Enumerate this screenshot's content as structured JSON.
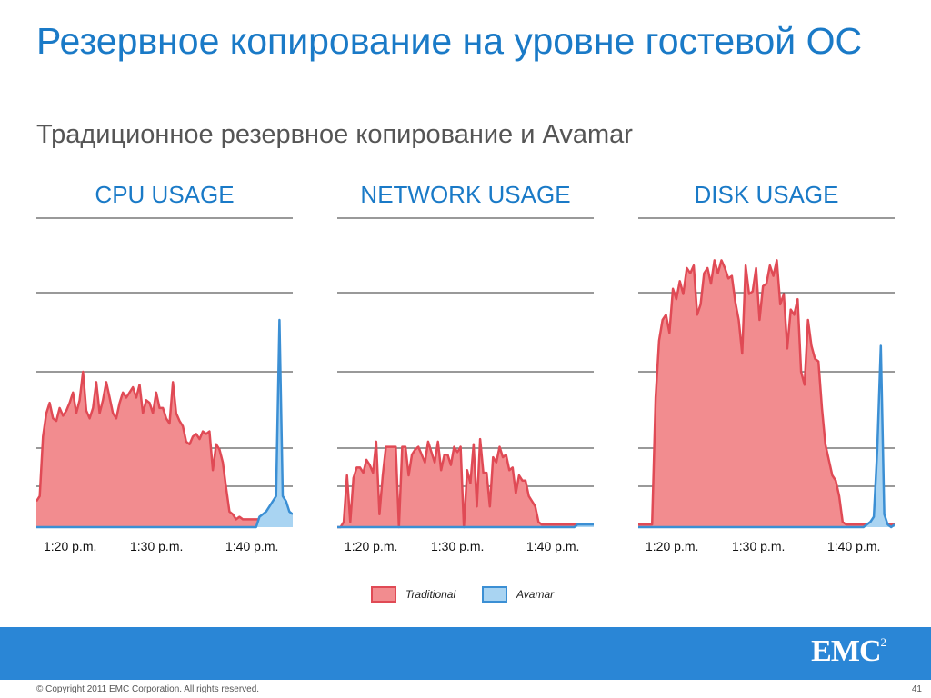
{
  "slide": {
    "title": "Резервное копирование на уровне гостевой ОС",
    "subtitle": "Традиционное резервное копирование и Avamar",
    "copyright": "© Copyright 2011 EMC Corporation. All rights reserved.",
    "page_number": "41",
    "logo_text": "EMC",
    "logo_sup": "2"
  },
  "colors": {
    "traditional_fill": "#f28c8f",
    "traditional_line": "#e04a55",
    "avamar_fill": "#a9d4f2",
    "avamar_line": "#3b8fd4",
    "accent": "#1a7ac7",
    "bar": "#2a86d6"
  },
  "legend": [
    {
      "name": "Traditional",
      "fill": "#f28c8f",
      "stroke": "#e04a55"
    },
    {
      "name": "Avamar",
      "fill": "#a9d4f2",
      "stroke": "#3b8fd4"
    }
  ],
  "chart_data": [
    {
      "type": "area",
      "title": "CPU USAGE",
      "x_ticks": [
        "1:20 p.m.",
        "1:30 p.m.",
        "1:40 p.m."
      ],
      "ylim": [
        0,
        100
      ],
      "grid": true,
      "series": [
        {
          "name": "Traditional",
          "values": [
            10,
            12,
            35,
            44,
            48,
            42,
            41,
            46,
            43,
            45,
            48,
            52,
            44,
            49,
            60,
            45,
            42,
            46,
            56,
            44,
            49,
            56,
            50,
            44,
            42,
            48,
            52,
            50,
            52,
            54,
            50,
            55,
            44,
            49,
            48,
            44,
            52,
            46,
            46,
            42,
            40,
            56,
            44,
            41,
            39,
            33,
            32,
            35,
            36,
            34,
            37,
            36,
            37,
            22,
            32,
            30,
            25,
            15,
            6,
            5,
            3,
            4,
            3,
            3,
            3,
            3,
            3,
            3,
            3,
            3,
            3,
            3,
            3,
            3,
            3,
            3,
            3,
            3
          ]
        },
        {
          "name": "Avamar",
          "values": [
            0,
            0,
            0,
            0,
            0,
            0,
            0,
            0,
            0,
            0,
            0,
            0,
            0,
            0,
            0,
            0,
            0,
            0,
            0,
            0,
            0,
            0,
            0,
            0,
            0,
            0,
            0,
            0,
            0,
            0,
            0,
            0,
            0,
            0,
            0,
            0,
            0,
            0,
            0,
            0,
            0,
            0,
            0,
            0,
            0,
            0,
            0,
            0,
            0,
            0,
            0,
            0,
            0,
            0,
            0,
            0,
            0,
            0,
            0,
            0,
            0,
            0,
            0,
            0,
            0,
            0,
            0,
            4,
            5,
            6,
            8,
            10,
            12,
            80,
            12,
            10,
            6,
            5
          ]
        }
      ]
    },
    {
      "type": "area",
      "title": "NETWORK USAGE",
      "x_ticks": [
        "1:20 p.m.",
        "1:30 p.m.",
        "1:40 p.m."
      ],
      "ylim": [
        0,
        100
      ],
      "grid": true,
      "series": [
        {
          "name": "Traditional",
          "values": [
            0,
            0,
            2,
            20,
            2,
            19,
            23,
            23,
            21,
            26,
            24,
            21,
            33,
            5,
            20,
            31,
            31,
            31,
            31,
            0,
            31,
            31,
            20,
            28,
            30,
            31,
            28,
            25,
            33,
            29,
            25,
            33,
            22,
            28,
            28,
            24,
            31,
            29,
            31,
            0,
            22,
            17,
            32,
            8,
            34,
            21,
            21,
            8,
            27,
            25,
            31,
            27,
            28,
            22,
            23,
            13,
            20,
            18,
            18,
            12,
            10,
            8,
            2,
            1,
            1,
            1,
            1,
            1,
            1,
            1,
            1,
            1,
            1,
            1,
            1,
            1,
            1,
            1,
            1,
            1
          ]
        },
        {
          "name": "Avamar",
          "values": [
            0,
            0,
            0,
            0,
            0,
            0,
            0,
            0,
            0,
            0,
            0,
            0,
            0,
            0,
            0,
            0,
            0,
            0,
            0,
            0,
            0,
            0,
            0,
            0,
            0,
            0,
            0,
            0,
            0,
            0,
            0,
            0,
            0,
            0,
            0,
            0,
            0,
            0,
            0,
            0,
            0,
            0,
            0,
            0,
            0,
            0,
            0,
            0,
            0,
            0,
            0,
            0,
            0,
            0,
            0,
            0,
            0,
            0,
            0,
            0,
            0,
            0,
            0,
            0,
            0,
            0,
            0,
            0,
            0,
            0,
            0,
            0,
            0,
            0,
            1,
            1,
            1,
            1,
            1,
            1
          ]
        }
      ]
    },
    {
      "type": "area",
      "title": "DISK USAGE",
      "x_ticks": [
        "1:20 p.m.",
        "1:30 p.m.",
        "1:40 p.m."
      ],
      "ylim": [
        0,
        100
      ],
      "grid": true,
      "series": [
        {
          "name": "Traditional",
          "values": [
            1,
            1,
            1,
            1,
            1,
            50,
            72,
            80,
            82,
            75,
            92,
            88,
            95,
            90,
            100,
            98,
            101,
            82,
            86,
            98,
            100,
            94,
            103,
            98,
            103,
            100,
            96,
            97,
            87,
            80,
            67,
            101,
            90,
            91,
            100,
            80,
            93,
            94,
            101,
            97,
            103,
            86,
            90,
            69,
            84,
            82,
            88,
            60,
            55,
            80,
            70,
            65,
            64,
            46,
            32,
            26,
            20,
            18,
            12,
            2,
            1,
            1,
            1,
            1,
            1,
            1,
            1,
            1,
            1,
            1,
            1,
            1,
            1,
            1,
            1
          ]
        },
        {
          "name": "Avamar",
          "values": [
            0,
            0,
            0,
            0,
            0,
            0,
            0,
            0,
            0,
            0,
            0,
            0,
            0,
            0,
            0,
            0,
            0,
            0,
            0,
            0,
            0,
            0,
            0,
            0,
            0,
            0,
            0,
            0,
            0,
            0,
            0,
            0,
            0,
            0,
            0,
            0,
            0,
            0,
            0,
            0,
            0,
            0,
            0,
            0,
            0,
            0,
            0,
            0,
            0,
            0,
            0,
            0,
            0,
            0,
            0,
            0,
            0,
            0,
            0,
            0,
            0,
            0,
            0,
            0,
            0,
            0,
            1,
            2,
            4,
            30,
            70,
            5,
            1,
            0,
            1
          ]
        }
      ]
    }
  ]
}
